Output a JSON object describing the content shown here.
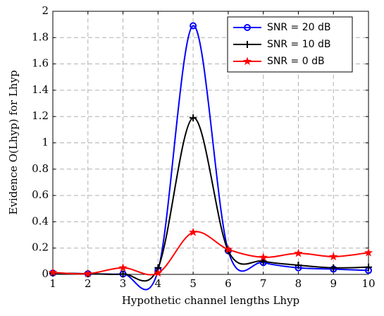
{
  "chart_data": {
    "type": "line",
    "xlabel": "Hypothetic channel lengths Lhyp",
    "ylabel": "Evidence O(Lhyp) for Lhyp",
    "x": [
      1,
      2,
      3,
      4,
      5,
      6,
      7,
      8,
      9,
      10
    ],
    "series": [
      {
        "name": "SNR = 20 dB",
        "color": "#0000ff",
        "marker": "circle",
        "values": [
          0.01,
          0.005,
          0.003,
          0.03,
          1.89,
          0.18,
          0.09,
          0.05,
          0.04,
          0.03
        ]
      },
      {
        "name": "SNR = 10 dB",
        "color": "#000000",
        "marker": "plus",
        "values": [
          0.01,
          0.005,
          0.003,
          0.05,
          1.19,
          0.18,
          0.1,
          0.07,
          0.05,
          0.055
        ]
      },
      {
        "name": "SNR = 0 dB",
        "color": "#ff0000",
        "marker": "star",
        "values": [
          0.015,
          0.005,
          0.05,
          0.01,
          0.32,
          0.19,
          0.13,
          0.16,
          0.135,
          0.165
        ]
      }
    ],
    "xlim": [
      1,
      10
    ],
    "xticks": [
      1,
      2,
      3,
      4,
      5,
      6,
      7,
      8,
      9,
      10
    ],
    "ylim": [
      0,
      2
    ],
    "yticks": [
      0,
      0.2,
      0.4,
      0.6,
      0.8,
      1,
      1.2,
      1.4,
      1.6,
      1.8,
      2
    ],
    "grid": true,
    "legend": "upper right"
  }
}
